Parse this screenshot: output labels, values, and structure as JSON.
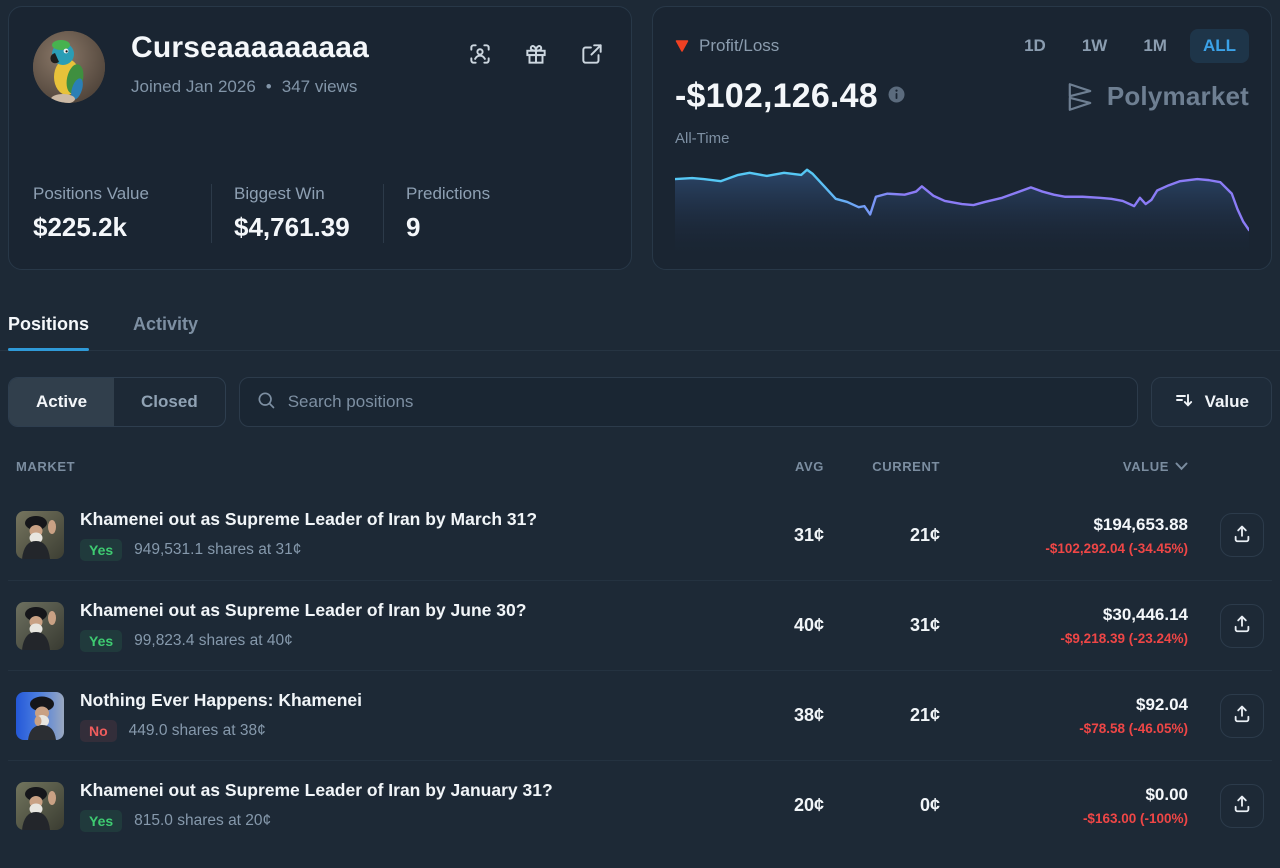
{
  "profile": {
    "name": "Curseaaaaaaaaa",
    "joined": "Joined Jan 2026",
    "dot": "•",
    "views": "347 views",
    "stats": [
      {
        "label": "Positions Value",
        "value": "$225.2k"
      },
      {
        "label": "Biggest Win",
        "value": "$4,761.39"
      },
      {
        "label": "Predictions",
        "value": "9"
      }
    ]
  },
  "pnl": {
    "label": "Profit/Loss",
    "value": "-$102,126.48",
    "period": "All-Time",
    "ranges": [
      "1D",
      "1W",
      "1M",
      "ALL"
    ],
    "active_range": "ALL",
    "watermark": "Polymarket"
  },
  "chart_data": {
    "type": "area",
    "title": "All-Time Profit/Loss",
    "xlabel": "time (unlabeled axis)",
    "ylabel": "profit/loss (unlabeled axis)",
    "end_value_displayed": "-$102,126.48",
    "legend": "none",
    "grid": "off",
    "line_colors": [
      "#56c8f5",
      "#8b7cf6"
    ],
    "note": "points are [x_percent, y_percent_from_top] of plot area; UI shows no numeric axes",
    "points_pct": [
      [
        0,
        27
      ],
      [
        3,
        26
      ],
      [
        5,
        27
      ],
      [
        8,
        29
      ],
      [
        11,
        23
      ],
      [
        13,
        21
      ],
      [
        16,
        24
      ],
      [
        19,
        21
      ],
      [
        22,
        23
      ],
      [
        23,
        18
      ],
      [
        24,
        22
      ],
      [
        26,
        34
      ],
      [
        28,
        46
      ],
      [
        30,
        49
      ],
      [
        32,
        54
      ],
      [
        33,
        53
      ],
      [
        34,
        61
      ],
      [
        35,
        44
      ],
      [
        37,
        41
      ],
      [
        40,
        42
      ],
      [
        42,
        39
      ],
      [
        43,
        34
      ],
      [
        45,
        43
      ],
      [
        47,
        48
      ],
      [
        50,
        51
      ],
      [
        52,
        52
      ],
      [
        54,
        49
      ],
      [
        57,
        45
      ],
      [
        59,
        41
      ],
      [
        62,
        35
      ],
      [
        64,
        39
      ],
      [
        66,
        42
      ],
      [
        68,
        44
      ],
      [
        71,
        44
      ],
      [
        74,
        45
      ],
      [
        76,
        46
      ],
      [
        78,
        48
      ],
      [
        80,
        53
      ],
      [
        81,
        45
      ],
      [
        82,
        51
      ],
      [
        83,
        47
      ],
      [
        84,
        38
      ],
      [
        86,
        33
      ],
      [
        88,
        29
      ],
      [
        91,
        27
      ],
      [
        93,
        28
      ],
      [
        95,
        30
      ],
      [
        97,
        41
      ],
      [
        98,
        56
      ],
      [
        99,
        68
      ],
      [
        100,
        76
      ]
    ]
  },
  "tabs": {
    "positions": "Positions",
    "activity": "Activity"
  },
  "filters": {
    "active": "Active",
    "closed": "Closed",
    "search_placeholder": "Search positions",
    "sort_label": "Value"
  },
  "table": {
    "headers": {
      "market": "MARKET",
      "avg": "AVG",
      "current": "CURRENT",
      "value": "VALUE"
    },
    "rows": [
      {
        "title": "Khamenei out as Supreme Leader of Iran by March 31?",
        "outcome": "Yes",
        "shares": "949,531.1 shares at 31¢",
        "avg": "31¢",
        "current": "21¢",
        "value": "$194,653.88",
        "change": "-$102,292.04 (-34.45%)"
      },
      {
        "title": "Khamenei out as Supreme Leader of Iran by June 30?",
        "outcome": "Yes",
        "shares": "99,823.4 shares at 40¢",
        "avg": "40¢",
        "current": "31¢",
        "value": "$30,446.14",
        "change": "-$9,218.39 (-23.24%)"
      },
      {
        "title": "Nothing Ever Happens: Khamenei",
        "outcome": "No",
        "shares": "449.0 shares at 38¢",
        "avg": "38¢",
        "current": "21¢",
        "value": "$92.04",
        "change": "-$78.58 (-46.05%)"
      },
      {
        "title": "Khamenei out as Supreme Leader of Iran by January 31?",
        "outcome": "Yes",
        "shares": "815.0 shares at 20¢",
        "avg": "20¢",
        "current": "0¢",
        "value": "$0.00",
        "change": "-$163.00 (-100%)"
      }
    ]
  },
  "colors": {
    "accent_blue": "#2f9ad8",
    "active_range_blue": "#3ba2e8",
    "negative_red": "#ef4646",
    "yes_green": "#3ecb71",
    "no_red": "#f05d5d",
    "loss_triangle": "#f04123",
    "chart_cyan": "#56c8f5",
    "chart_purple": "#8b7cf6",
    "page_bg": "#1d2936",
    "card_bg": "#1a2532"
  }
}
